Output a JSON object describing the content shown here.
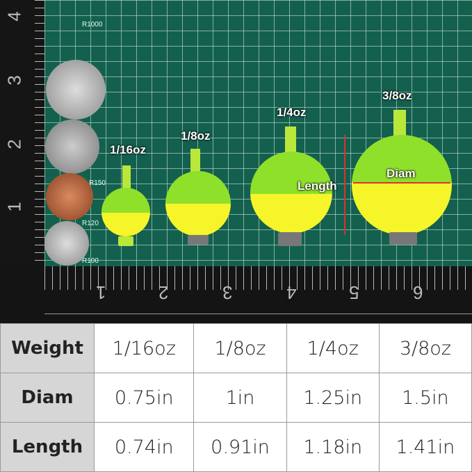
{
  "photo": {
    "mat_labels": [
      "R1000",
      "R150",
      "R120",
      "R100"
    ],
    "ruler_numbers": [
      "1",
      "2",
      "3",
      "4",
      "5",
      "6"
    ],
    "vertical_ruler_numbers": [
      "4",
      "3",
      "2",
      "1"
    ],
    "float_labels": [
      "1/16oz",
      "1/8oz",
      "1/4oz",
      "3/8oz"
    ],
    "annotations": {
      "length": "Length",
      "diam": "Diam"
    },
    "colors": {
      "mat": "#14604e",
      "float_top": "#8fe02a",
      "float_bottom": "#f5f52a",
      "arrow": "#e03030"
    }
  },
  "table": {
    "rows": [
      {
        "header": "Weight",
        "values": [
          "1/16oz",
          "1/8oz",
          "1/4oz",
          "3/8oz"
        ]
      },
      {
        "header": "Diam",
        "values": [
          "0.75in",
          "1in",
          "1.25in",
          "1.5in"
        ]
      },
      {
        "header": "Length",
        "values": [
          "0.74in",
          "0.91in",
          "1.18in",
          "1.41in"
        ]
      }
    ]
  }
}
